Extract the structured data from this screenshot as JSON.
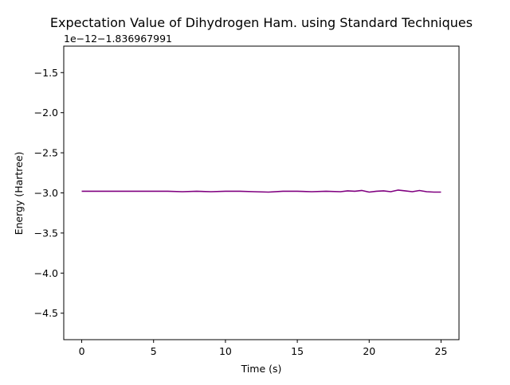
{
  "chart_data": {
    "type": "line",
    "title": "Expectation Value of Dihydrogen Ham. using Standard Techniques",
    "xlabel": "Time (s)",
    "ylabel": "Energy (Hartree)",
    "offset_label": "1e−12−1.836967991",
    "xlim": [
      -1.25,
      26.25
    ],
    "ylim": [
      -4.83,
      -1.17
    ],
    "x_ticks": [
      0,
      5,
      10,
      15,
      20,
      25
    ],
    "x_tick_labels": [
      "0",
      "5",
      "10",
      "15",
      "20",
      "25"
    ],
    "y_ticks": [
      -1.5,
      -2.0,
      -2.5,
      -3.0,
      -3.5,
      -4.0,
      -4.5
    ],
    "y_tick_labels": [
      "−1.5",
      "−2.0",
      "−2.5",
      "−3.0",
      "−3.5",
      "−4.0",
      "−4.5"
    ],
    "grid": false,
    "series": [
      {
        "color": "#800080",
        "x": [
          0,
          1,
          2,
          3,
          4,
          5,
          6,
          7,
          8,
          9,
          10,
          11,
          12,
          13,
          14,
          15,
          16,
          17,
          18,
          18.5,
          19,
          19.5,
          20,
          20.5,
          21,
          21.5,
          22,
          22.5,
          23,
          23.5,
          24,
          24.5,
          25
        ],
        "values": [
          -2.98,
          -2.98,
          -2.98,
          -2.98,
          -2.98,
          -2.98,
          -2.98,
          -2.985,
          -2.98,
          -2.985,
          -2.98,
          -2.98,
          -2.985,
          -2.99,
          -2.98,
          -2.98,
          -2.985,
          -2.98,
          -2.985,
          -2.975,
          -2.98,
          -2.97,
          -2.99,
          -2.98,
          -2.975,
          -2.985,
          -2.965,
          -2.975,
          -2.985,
          -2.97,
          -2.985,
          -2.99,
          -2.99
        ]
      }
    ]
  }
}
